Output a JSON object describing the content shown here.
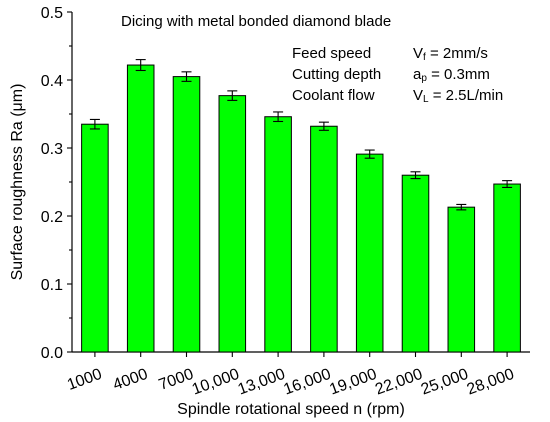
{
  "chart_data": {
    "type": "bar",
    "title": "Dicing with metal bonded diamond blade",
    "xlabel": "Spindle rotational speed n (rpm)",
    "ylabel": "Surface roughness Ra (μm)",
    "categories": [
      "1000",
      "4000",
      "7000",
      "10,000",
      "13,000",
      "16,000",
      "19,000",
      "22,000",
      "25,000",
      "28,000"
    ],
    "values": [
      0.335,
      0.422,
      0.405,
      0.377,
      0.346,
      0.332,
      0.291,
      0.26,
      0.213,
      0.247
    ],
    "error": [
      0.007,
      0.008,
      0.007,
      0.007,
      0.007,
      0.006,
      0.006,
      0.005,
      0.004,
      0.005
    ],
    "ylim": [
      0.0,
      0.5
    ],
    "yticks": [
      "0.0",
      "0.1",
      "0.2",
      "0.3",
      "0.4",
      "0.5"
    ],
    "bar_color": "#00ff00",
    "grid": false,
    "annotations": [
      {
        "label": "Feed speed",
        "sym": "V",
        "sub": "f",
        "value": " = 2mm/s"
      },
      {
        "label": "Cutting depth",
        "sym": "a",
        "sub": "p",
        "value": " = 0.3mm"
      },
      {
        "label": "Coolant flow",
        "sym": "V",
        "sub": "L",
        "value": " = 2.5L/min"
      }
    ]
  }
}
